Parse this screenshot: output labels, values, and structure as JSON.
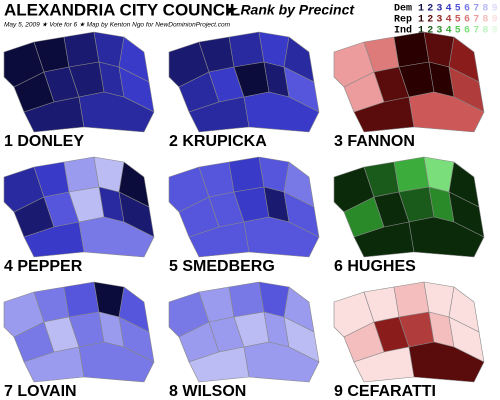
{
  "title": "ALEXANDRIA CITY COUNCIL",
  "subtitle": "★ Rank by Precinct",
  "byline": "May 5, 2009 ★ Vote for 6 ★ Map by Kenton Ngo for NewDominionProject.com",
  "legend": [
    {
      "party": "Dem",
      "ranks": [
        1,
        2,
        3,
        4,
        5,
        6,
        7,
        8,
        9
      ],
      "colors": [
        "#0b0b3c",
        "#1a1a70",
        "#2a2aa0",
        "#3a3ac8",
        "#5656dc",
        "#7878e6",
        "#9a9aee",
        "#bcbcf4",
        "#dcdcfa"
      ]
    },
    {
      "party": "Rep",
      "ranks": [
        1,
        2,
        3,
        4,
        5,
        6,
        7,
        8,
        9
      ],
      "colors": [
        "#2a0000",
        "#5a0c0c",
        "#8a1c1c",
        "#b03c3c",
        "#cc5858",
        "#dd7a7a",
        "#ec9c9c",
        "#f5bebe",
        "#fbdfdf"
      ]
    },
    {
      "party": "Ind",
      "ranks": [
        1,
        2,
        3,
        4,
        5,
        6,
        7,
        8,
        9
      ],
      "colors": [
        "#0a2a0a",
        "#1a5a1a",
        "#2a8a2a",
        "#3cac3c",
        "#5cc85c",
        "#7ade7a",
        "#9cec9c",
        "#bef4be",
        "#dff9df"
      ]
    }
  ],
  "panels": [
    {
      "label": "1 DONLEY",
      "party": "Dem",
      "precinct_ranks": [
        1,
        1,
        2,
        3,
        4,
        1,
        2,
        2,
        3,
        4,
        2,
        3
      ]
    },
    {
      "label": "2 KRUPICKA",
      "party": "Dem",
      "precinct_ranks": [
        2,
        2,
        3,
        4,
        3,
        3,
        4,
        1,
        2,
        5,
        3,
        4
      ]
    },
    {
      "label": "3 FANNON",
      "party": "Rep",
      "precinct_ranks": [
        7,
        6,
        1,
        2,
        3,
        7,
        2,
        1,
        1,
        4,
        2,
        5
      ]
    },
    {
      "label": "4 PEPPER",
      "party": "Dem",
      "precinct_ranks": [
        3,
        4,
        7,
        8,
        1,
        2,
        5,
        8,
        3,
        2,
        4,
        6
      ]
    },
    {
      "label": "5 SMEDBERG",
      "party": "Dem",
      "precinct_ranks": [
        5,
        5,
        4,
        5,
        6,
        5,
        5,
        4,
        2,
        5,
        5,
        5
      ]
    },
    {
      "label": "6 HUGHES",
      "party": "Ind",
      "precinct_ranks": [
        1,
        2,
        4,
        6,
        1,
        3,
        1,
        2,
        3,
        1,
        1,
        1
      ]
    },
    {
      "label": "7 LOVAIN",
      "party": "Dem",
      "precinct_ranks": [
        7,
        6,
        5,
        1,
        5,
        6,
        8,
        6,
        7,
        6,
        7,
        6
      ]
    },
    {
      "label": "8 WILSON",
      "party": "Dem",
      "precinct_ranks": [
        6,
        7,
        6,
        5,
        7,
        7,
        7,
        8,
        7,
        8,
        8,
        7
      ]
    },
    {
      "label": "9 CEFARATTI",
      "party": "Rep",
      "precinct_ranks": [
        9,
        9,
        8,
        9,
        9,
        8,
        3,
        4,
        8,
        9,
        9,
        2
      ]
    }
  ]
}
